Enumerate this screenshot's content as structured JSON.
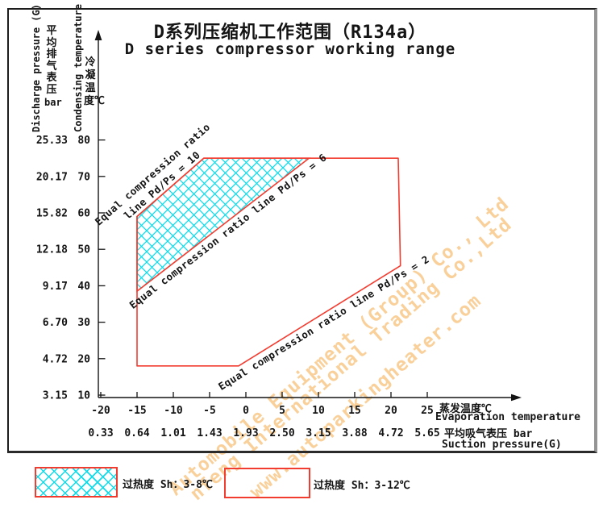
{
  "chart_data": {
    "type": "area",
    "title": "D系列压缩机工作范围（R134a）",
    "subtitle": "D series compressor working range",
    "x_axis": {
      "name_cn": "蒸发温度℃",
      "name_en": "Evaporation temperature",
      "ticks": [
        -20,
        -15,
        -10,
        -5,
        0,
        5,
        10,
        15,
        20,
        25
      ],
      "range": [
        -22,
        27
      ],
      "grid": false
    },
    "suction_axis": {
      "name_cn": "平均吸气表压 bar",
      "name_en": "Suction pressure(G)",
      "ticks": [
        "0.33",
        "0.64",
        "1.01",
        "1.43",
        "1.93",
        "2.50",
        "3.15",
        "3.88",
        "4.72",
        "5.65"
      ]
    },
    "y_axis": {
      "name_cn": "冷凝温度℃",
      "name_en": "Condensing temperature",
      "ticks": [
        80,
        70,
        60,
        50,
        40,
        30,
        20,
        10
      ],
      "range": [
        10,
        85
      ],
      "grid": false
    },
    "discharge_axis": {
      "name_cn": "平均排气表压",
      "unit": "bar",
      "name_en": "Discharge pressure (G)",
      "ticks": [
        "25.33",
        "20.17",
        "15.82",
        "12.18",
        "9.17",
        "6.70",
        "4.72",
        "3.15"
      ]
    },
    "regions": {
      "working_range": {
        "superheat": "3-12℃",
        "polygon": [
          [
            -15,
            18
          ],
          [
            -15,
            59
          ],
          [
            -5.8,
            75
          ],
          [
            21,
            75
          ],
          [
            21.3,
            45.5
          ],
          [
            -1,
            18
          ]
        ]
      },
      "preferred": {
        "superheat": "3-8℃",
        "polygon": [
          [
            -15,
            38.5
          ],
          [
            -15,
            59
          ],
          [
            -5.8,
            75
          ],
          [
            8.7,
            75
          ]
        ]
      }
    },
    "ratio_lines": [
      {
        "ratio": 10,
        "label_lines": [
          "Equal compression ratio",
          "line Pd/Ps = 10"
        ],
        "from": [
          -15,
          59
        ],
        "to": [
          -5.8,
          75
        ]
      },
      {
        "ratio": 6,
        "label_lines": [
          "Equal compression ratio line Pd/Ps = 6"
        ],
        "from": [
          -15,
          38.5
        ],
        "to": [
          8.7,
          75
        ]
      },
      {
        "ratio": 2,
        "label_lines": [
          "Equal compression ratio line Pd/Ps = 2"
        ],
        "from": [
          -1,
          18
        ],
        "to": [
          21.3,
          45.5
        ]
      }
    ]
  },
  "legend": {
    "items": [
      {
        "swatch": "cyan-crosshatch",
        "label": "过热度 Sh：3-8℃"
      },
      {
        "swatch": "white-blank",
        "label": "过热度 Sh：3-12℃"
      }
    ]
  },
  "watermark": {
    "lines": [
      "Automobile Equipment (Group) Co., Ltd",
      "nfeng International Trading Co.,Ltd",
      "www.autoparkingheater.com"
    ]
  },
  "colors": {
    "line_red": "#f23c30",
    "hatch_cyan": "#10dbe8",
    "axis": "#141414",
    "watermark": "#f9d09a"
  }
}
